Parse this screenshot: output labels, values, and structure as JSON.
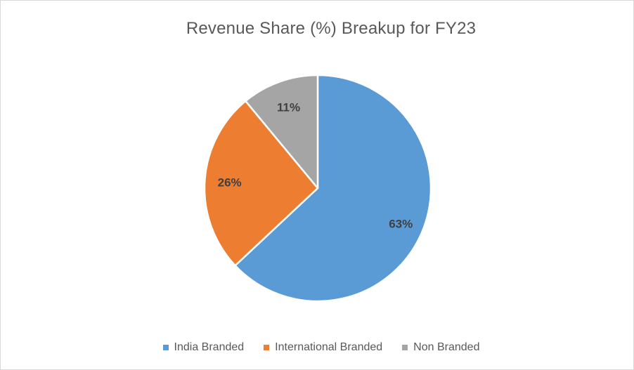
{
  "chart_data": {
    "type": "pie",
    "title": "Revenue Share (%) Breakup for FY23",
    "categories": [
      "India Branded",
      "International Branded",
      "Non Branded"
    ],
    "values": [
      63,
      26,
      11
    ],
    "data_labels": [
      "63%",
      "26%",
      "11%"
    ],
    "colors": [
      "#5b9bd5",
      "#ed7d31",
      "#a5a5a5"
    ],
    "legend_position": "bottom",
    "start_angle": "12 o'clock",
    "direction": "clockwise"
  }
}
